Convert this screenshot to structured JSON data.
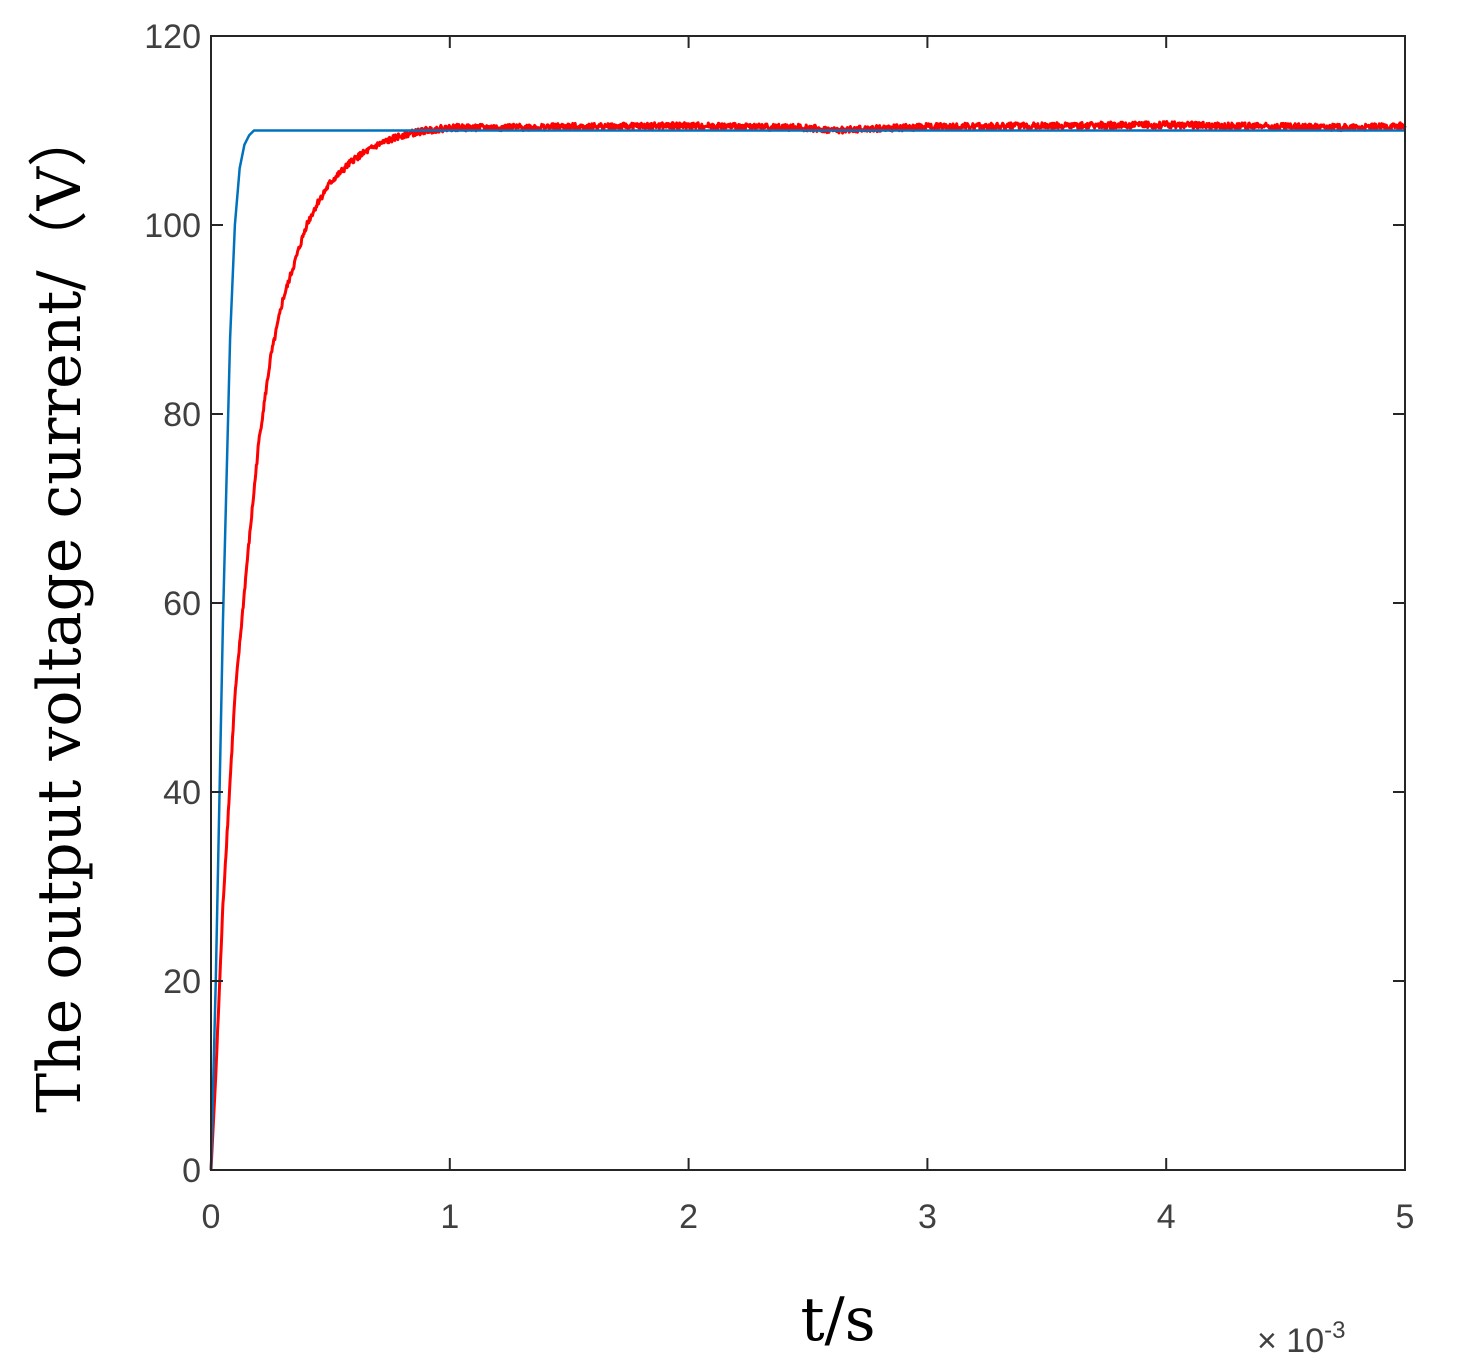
{
  "chart_data": {
    "type": "line",
    "xlabel": "t/s",
    "ylabel": "The output voltage current/（V）",
    "x_exponent_label": "× 10",
    "x_exponent_power": "-3",
    "xlim": [
      0,
      5
    ],
    "ylim": [
      0,
      120
    ],
    "x_ticks": [
      0,
      1,
      2,
      3,
      4,
      5
    ],
    "y_ticks": [
      0,
      20,
      40,
      60,
      80,
      100,
      120
    ],
    "x_tick_labels": [
      "0",
      "1",
      "2",
      "3",
      "4",
      "5"
    ],
    "y_tick_labels": [
      "0",
      "20",
      "40",
      "60",
      "80",
      "100",
      "120"
    ],
    "grid": false,
    "legend": "none",
    "series": [
      {
        "color": "#0072BD",
        "x": [
          0,
          0.02,
          0.05,
          0.08,
          0.1,
          0.12,
          0.14,
          0.16,
          0.18,
          0.2,
          0.25,
          0.3,
          1,
          2,
          3,
          4,
          5
        ],
        "y": [
          0,
          20,
          58,
          88,
          100,
          106,
          108.5,
          109.5,
          110,
          110,
          110,
          110,
          110,
          110,
          110,
          110,
          110
        ]
      },
      {
        "color": "#FF0000",
        "noise": 0.35,
        "x": [
          0,
          0.02,
          0.05,
          0.1,
          0.15,
          0.2,
          0.25,
          0.3,
          0.35,
          0.4,
          0.45,
          0.5,
          0.6,
          0.7,
          0.8,
          0.9,
          1.0,
          1.2,
          1.5,
          2.0,
          2.5,
          2.6,
          3.0,
          3.5,
          4.0,
          4.5,
          4.8,
          5.0
        ],
        "y": [
          0,
          10,
          28,
          50,
          64,
          77,
          86,
          92,
          96,
          100,
          102.5,
          104.5,
          107,
          108.5,
          109.5,
          110,
          110.3,
          110.3,
          110.4,
          110.5,
          110.3,
          110,
          110.4,
          110.5,
          110.6,
          110.4,
          110.3,
          110.5
        ]
      }
    ]
  }
}
